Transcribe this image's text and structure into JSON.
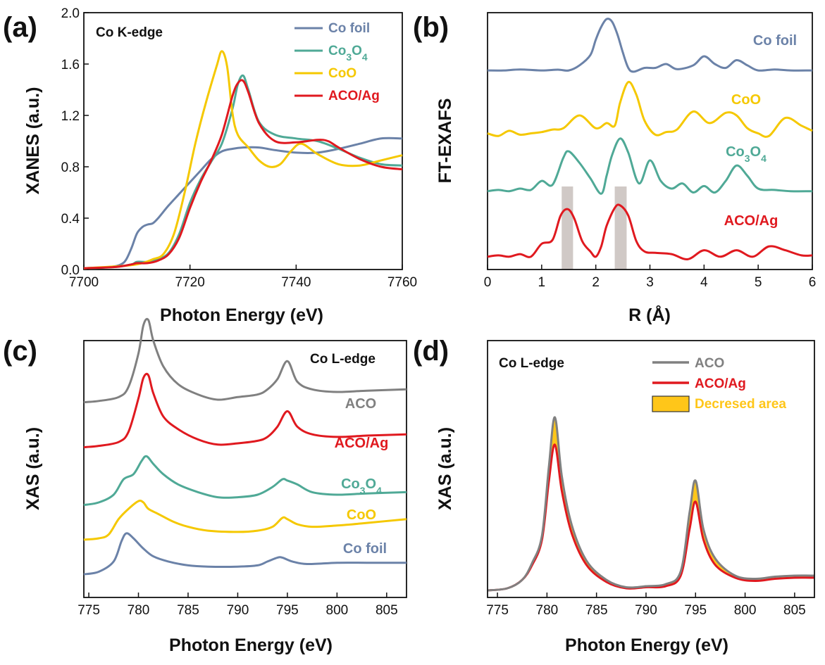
{
  "panels": {
    "a": {
      "letter": "(a)",
      "edge_label": "Co K-edge",
      "xlabel": "Photon Energy (eV)",
      "ylabel": "XANES (a.u.)"
    },
    "b": {
      "letter": "(b)",
      "xlabel": "R (Å)",
      "ylabel": "FT-EXAFS"
    },
    "c": {
      "letter": "(c)",
      "edge_label": "Co L-edge",
      "xlabel": "Photon Energy (eV)",
      "ylabel": "XAS (a.u.)"
    },
    "d": {
      "letter": "(d)",
      "edge_label": "Co L-edge",
      "xlabel": "Photon Energy (eV)",
      "ylabel": "XAS (a.u.)"
    }
  },
  "colors": {
    "co_foil": "#6b82a8",
    "co3o4": "#4fa996",
    "coo": "#f5c800",
    "aco_ag": "#e0191f",
    "aco": "#808080",
    "decreased_area": "#ffc619",
    "highlight": "#c8c0bc"
  },
  "chart_data": [
    {
      "panel": "a",
      "type": "line",
      "xlim": [
        7700,
        7760
      ],
      "ylim": [
        0,
        2.0
      ],
      "x_ticks": [
        7700,
        7720,
        7740,
        7760
      ],
      "y_ticks": [
        "0.0",
        "0.4",
        "0.8",
        "1.2",
        "1.6",
        "2.0"
      ],
      "legend_placement": "top-right",
      "series": [
        {
          "name": "Co foil",
          "sub": "",
          "color_key": "co_foil",
          "x": [
            7700,
            7705,
            7707,
            7708,
            7709,
            7710,
            7711,
            7712,
            7713,
            7714,
            7716,
            7718,
            7720,
            7722,
            7724,
            7726,
            7728,
            7730,
            7733,
            7736,
            7740,
            7744,
            7748,
            7752,
            7756,
            7760
          ],
          "y": [
            0.01,
            0.02,
            0.04,
            0.08,
            0.17,
            0.28,
            0.33,
            0.35,
            0.36,
            0.4,
            0.5,
            0.59,
            0.68,
            0.77,
            0.86,
            0.92,
            0.94,
            0.95,
            0.95,
            0.93,
            0.91,
            0.91,
            0.94,
            0.98,
            1.02,
            1.02
          ]
        },
        {
          "name": "Co",
          "sub": "3",
          "name2": "O",
          "sub2": "4",
          "color_key": "co3o4",
          "x": [
            7700,
            7706,
            7709,
            7710,
            7712,
            7714,
            7716,
            7718,
            7720,
            7722,
            7724,
            7726,
            7728,
            7729,
            7730,
            7731,
            7733,
            7736,
            7740,
            7744,
            7748,
            7752,
            7756,
            7760
          ],
          "y": [
            0.01,
            0.02,
            0.04,
            0.06,
            0.06,
            0.08,
            0.13,
            0.28,
            0.52,
            0.7,
            0.84,
            0.98,
            1.25,
            1.44,
            1.51,
            1.4,
            1.15,
            1.05,
            1.02,
            1.0,
            0.94,
            0.87,
            0.82,
            0.81
          ]
        },
        {
          "name": "CoO",
          "sub": "",
          "color_key": "coo",
          "x": [
            7700,
            7708,
            7711,
            7713,
            7715,
            7717,
            7719,
            7721,
            7723,
            7725,
            7726,
            7727,
            7728,
            7729,
            7731,
            7733,
            7735,
            7737,
            7739,
            7741,
            7744,
            7748,
            7752,
            7756,
            7760
          ],
          "y": [
            0.01,
            0.03,
            0.05,
            0.08,
            0.12,
            0.28,
            0.6,
            0.98,
            1.3,
            1.58,
            1.7,
            1.58,
            1.22,
            1.05,
            0.95,
            0.85,
            0.8,
            0.82,
            0.92,
            0.98,
            0.9,
            0.82,
            0.81,
            0.85,
            0.89
          ]
        },
        {
          "name": "ACO/Ag",
          "sub": "",
          "color_key": "aco_ag",
          "x": [
            7700,
            7706,
            7709,
            7710,
            7712,
            7714,
            7716,
            7718,
            7720,
            7722,
            7724,
            7726,
            7728,
            7729,
            7730,
            7731,
            7733,
            7736,
            7740,
            7744,
            7746,
            7748,
            7752,
            7756,
            7760
          ],
          "y": [
            0.01,
            0.02,
            0.04,
            0.05,
            0.05,
            0.07,
            0.12,
            0.25,
            0.48,
            0.68,
            0.85,
            1.05,
            1.35,
            1.45,
            1.47,
            1.38,
            1.14,
            1.0,
            0.99,
            1.01,
            1.0,
            0.95,
            0.86,
            0.8,
            0.78
          ]
        }
      ]
    },
    {
      "panel": "b",
      "type": "line",
      "xlim": [
        0,
        6
      ],
      "ylim": [
        0,
        1
      ],
      "x_ticks": [
        0,
        1,
        2,
        3,
        4,
        5,
        6
      ],
      "highlight_bands_x": [
        [
          1.37,
          1.58
        ],
        [
          2.35,
          2.57
        ]
      ],
      "series": [
        {
          "name": "Co foil",
          "sub": "",
          "color_key": "co_foil",
          "baseline": 0.775,
          "x": [
            0,
            0.3,
            0.6,
            1.0,
            1.3,
            1.5,
            1.7,
            1.9,
            2.0,
            2.1,
            2.2,
            2.3,
            2.4,
            2.5,
            2.6,
            2.7,
            2.9,
            3.1,
            3.3,
            3.5,
            3.8,
            4.0,
            4.2,
            4.4,
            4.6,
            4.8,
            5.0,
            5.3,
            5.6,
            6.0
          ],
          "y": [
            0.0,
            0.0,
            0.004,
            0.0,
            0.003,
            0.0,
            0.02,
            0.06,
            0.12,
            0.17,
            0.2,
            0.19,
            0.14,
            0.07,
            0.01,
            -0.005,
            0.01,
            0.01,
            0.025,
            0.005,
            0.02,
            0.055,
            0.025,
            0.01,
            0.04,
            0.02,
            0.0,
            0.004,
            0.0,
            0.0
          ]
        },
        {
          "name": "CoO",
          "sub": "",
          "color_key": "coo",
          "baseline": 0.53,
          "x": [
            0,
            0.2,
            0.4,
            0.6,
            0.8,
            1.0,
            1.2,
            1.4,
            1.7,
            2.0,
            2.2,
            2.35,
            2.45,
            2.6,
            2.75,
            2.9,
            3.1,
            3.3,
            3.5,
            3.8,
            4.1,
            4.4,
            4.6,
            4.8,
            5.0,
            5.2,
            5.5,
            5.8,
            6.0
          ],
          "y": [
            0.0,
            -0.01,
            0.01,
            -0.005,
            0.0,
            0.005,
            0.015,
            0.02,
            0.07,
            0.02,
            0.04,
            0.03,
            0.12,
            0.2,
            0.15,
            0.05,
            -0.005,
            0.005,
            0.015,
            0.085,
            0.04,
            0.08,
            0.07,
            0.02,
            0.0,
            -0.01,
            0.06,
            0.03,
            0.01
          ]
        },
        {
          "name": "Co",
          "sub": "3",
          "name2": "O",
          "sub2": "4",
          "color_key": "co3o4",
          "baseline": 0.305,
          "x": [
            0,
            0.2,
            0.4,
            0.6,
            0.8,
            1.0,
            1.2,
            1.4,
            1.5,
            1.7,
            1.9,
            2.1,
            2.2,
            2.3,
            2.45,
            2.6,
            2.8,
            3.0,
            3.2,
            3.4,
            3.6,
            3.8,
            4.0,
            4.2,
            4.4,
            4.6,
            4.8,
            5.0,
            5.3,
            5.6,
            6.0
          ],
          "y": [
            0.0,
            0.005,
            0.0,
            0.01,
            0.005,
            0.04,
            0.025,
            0.13,
            0.155,
            0.11,
            0.05,
            -0.01,
            0.06,
            0.14,
            0.205,
            0.15,
            0.03,
            0.12,
            0.04,
            0.01,
            0.03,
            -0.005,
            0.02,
            -0.005,
            0.04,
            0.1,
            0.06,
            0.01,
            0.005,
            0.0,
            0.0
          ]
        },
        {
          "name": "ACO/Ag",
          "sub": "",
          "color_key": "aco_ag",
          "baseline": 0.05,
          "x": [
            0,
            0.2,
            0.4,
            0.6,
            0.8,
            1.0,
            1.2,
            1.35,
            1.48,
            1.6,
            1.75,
            1.9,
            2.0,
            2.1,
            2.2,
            2.35,
            2.45,
            2.6,
            2.75,
            2.9,
            3.1,
            3.4,
            3.7,
            4.0,
            4.3,
            4.6,
            4.9,
            5.2,
            5.5,
            5.8,
            6.0
          ],
          "y": [
            0.0,
            0.005,
            0.0,
            0.01,
            0.0,
            0.05,
            0.065,
            0.16,
            0.185,
            0.15,
            0.06,
            0.02,
            0.0,
            0.04,
            0.12,
            0.19,
            0.2,
            0.16,
            0.06,
            0.02,
            0.015,
            0.01,
            -0.01,
            0.025,
            0.0,
            0.025,
            0.0,
            0.04,
            0.025,
            0.005,
            0.005
          ]
        }
      ]
    },
    {
      "panel": "c",
      "type": "line",
      "xlim": [
        774.5,
        807
      ],
      "x_ticks": [
        775,
        780,
        785,
        790,
        795,
        800,
        805
      ],
      "series": [
        {
          "name": "ACO",
          "sub": "",
          "color_key": "aco",
          "baseline": 0.76,
          "x": [
            774.5,
            776,
            778,
            779,
            780,
            780.5,
            781,
            781.5,
            782.5,
            784,
            786,
            788,
            790,
            792,
            793,
            794,
            795,
            796,
            797.5,
            800,
            803,
            807
          ],
          "y": [
            0.0,
            0.005,
            0.02,
            0.06,
            0.19,
            0.3,
            0.32,
            0.24,
            0.14,
            0.07,
            0.03,
            0.01,
            0.02,
            0.03,
            0.05,
            0.09,
            0.16,
            0.08,
            0.05,
            0.04,
            0.045,
            0.05
          ]
        },
        {
          "name": "ACO/Ag",
          "sub": "",
          "color_key": "aco_ag",
          "baseline": 0.585,
          "x": [
            774.5,
            776,
            778,
            779,
            780,
            780.5,
            781,
            781.5,
            782.5,
            784,
            786,
            788,
            790,
            792,
            793,
            794,
            795,
            796,
            797.5,
            800,
            803,
            807
          ],
          "y": [
            0.0,
            0.005,
            0.02,
            0.06,
            0.19,
            0.27,
            0.28,
            0.21,
            0.12,
            0.07,
            0.03,
            0.01,
            0.015,
            0.025,
            0.04,
            0.08,
            0.14,
            0.08,
            0.05,
            0.04,
            0.045,
            0.05
          ]
        },
        {
          "name": "Co",
          "sub": "3",
          "name2": "O",
          "sub2": "4",
          "color_key": "co3o4",
          "baseline": 0.36,
          "x": [
            774.5,
            776,
            777.5,
            778.5,
            779.5,
            780.3,
            780.8,
            781.5,
            782.5,
            784,
            786,
            788,
            790,
            792,
            793.5,
            794.5,
            795,
            796,
            797.5,
            800,
            803,
            807
          ],
          "y": [
            0.0,
            0.01,
            0.04,
            0.1,
            0.12,
            0.17,
            0.19,
            0.16,
            0.12,
            0.08,
            0.05,
            0.03,
            0.03,
            0.04,
            0.07,
            0.1,
            0.095,
            0.08,
            0.05,
            0.04,
            0.045,
            0.05
          ]
        },
        {
          "name": "CoO",
          "sub": "",
          "color_key": "coo",
          "baseline": 0.225,
          "x": [
            774.5,
            776,
            777,
            778,
            779,
            780,
            780.5,
            781,
            782,
            783.5,
            785,
            787,
            790,
            792,
            793.5,
            794.5,
            795,
            796,
            797.5,
            800,
            803,
            807
          ],
          "y": [
            0.0,
            0.005,
            0.02,
            0.08,
            0.12,
            0.15,
            0.145,
            0.12,
            0.1,
            0.07,
            0.05,
            0.035,
            0.03,
            0.035,
            0.05,
            0.085,
            0.08,
            0.06,
            0.05,
            0.055,
            0.065,
            0.08
          ]
        },
        {
          "name": "Co foil",
          "sub": "",
          "color_key": "co_foil",
          "baseline": 0.09,
          "x": [
            774.5,
            776,
            777.5,
            778.3,
            778.8,
            779.5,
            780.5,
            781.5,
            783,
            785,
            787,
            790,
            792,
            793,
            794,
            794.5,
            795.5,
            797,
            800,
            803,
            807
          ],
          "y": [
            0.0,
            0.01,
            0.05,
            0.13,
            0.16,
            0.14,
            0.1,
            0.07,
            0.05,
            0.035,
            0.03,
            0.03,
            0.035,
            0.05,
            0.065,
            0.065,
            0.05,
            0.04,
            0.045,
            0.045,
            0.045
          ]
        }
      ]
    },
    {
      "panel": "d",
      "type": "area",
      "xlim": [
        774,
        807
      ],
      "x_ticks": [
        775,
        780,
        785,
        790,
        795,
        800,
        805
      ],
      "legend_placement": "top-right",
      "legend": [
        {
          "label": "ACO",
          "color_key": "aco",
          "kind": "line"
        },
        {
          "label": "ACO/Ag",
          "color_key": "aco_ag",
          "kind": "line"
        },
        {
          "label": "Decresed area",
          "color_key": "decreased_area",
          "kind": "box"
        }
      ],
      "x": [
        774,
        776,
        777.5,
        778.5,
        779.5,
        780.2,
        780.8,
        781.5,
        782.5,
        784,
        786,
        788,
        790,
        792,
        793.5,
        794.4,
        795,
        795.8,
        797,
        799,
        801,
        803,
        805,
        807
      ],
      "series": [
        {
          "name": "ACO",
          "color_key": "aco",
          "y": [
            0.01,
            0.02,
            0.06,
            0.14,
            0.27,
            0.6,
            0.83,
            0.55,
            0.32,
            0.15,
            0.06,
            0.025,
            0.03,
            0.04,
            0.1,
            0.38,
            0.53,
            0.3,
            0.16,
            0.08,
            0.065,
            0.075,
            0.08,
            0.08
          ]
        },
        {
          "name": "ACO/Ag",
          "color_key": "aco_ag",
          "y": [
            0.01,
            0.02,
            0.06,
            0.13,
            0.25,
            0.53,
            0.7,
            0.48,
            0.28,
            0.13,
            0.05,
            0.02,
            0.025,
            0.03,
            0.08,
            0.3,
            0.43,
            0.25,
            0.13,
            0.07,
            0.055,
            0.065,
            0.07,
            0.07
          ]
        }
      ]
    }
  ]
}
